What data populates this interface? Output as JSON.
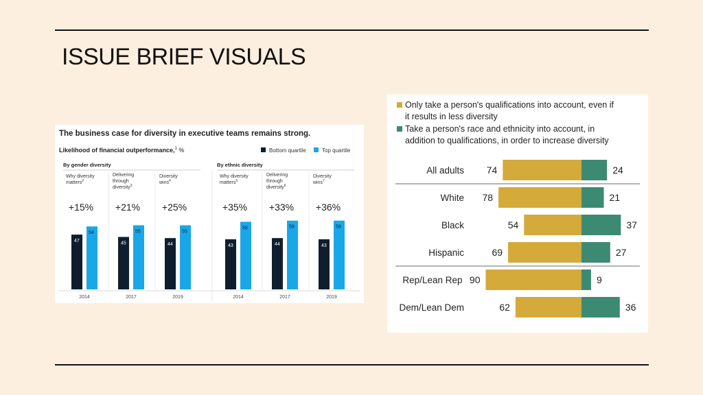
{
  "slide": {
    "title": "ISSUE BRIEF VISUALS"
  },
  "chart_data": [
    {
      "type": "bar",
      "title": "The business case for diversity in executive teams remains strong.",
      "subtitle": "Likelihood of financial outperformance,",
      "subtitle_sup": "1",
      "subtitle_unit": " %",
      "legend": [
        {
          "name": "Bottom quartile",
          "color": "#0f1e2e"
        },
        {
          "name": "Top quartile",
          "color": "#1aa7e8"
        }
      ],
      "legend_position": "top-right",
      "ylim": [
        0,
        100
      ],
      "panels": [
        {
          "heading": "By gender diversity",
          "groups": [
            {
              "label": [
                "Why diversity",
                "matters"
              ],
              "sup": "2",
              "year": "2014",
              "delta": "+15%",
              "bottom": 47,
              "top": 54
            },
            {
              "label": [
                "Delivering",
                "through",
                "diversity"
              ],
              "sup": "3",
              "year": "2017",
              "delta": "+21%",
              "bottom": 45,
              "top": 55
            },
            {
              "label": [
                "Diversity",
                "wins"
              ],
              "sup": "4",
              "year": "2019",
              "delta": "+25%",
              "bottom": 44,
              "top": 55
            }
          ]
        },
        {
          "heading": "By ethnic diversity",
          "groups": [
            {
              "label": [
                "Why diversity",
                "matters"
              ],
              "sup": "5",
              "year": "2014",
              "delta": "+35%",
              "bottom": 43,
              "top": 58
            },
            {
              "label": [
                "Delivering",
                "through",
                "diversity"
              ],
              "sup": "6",
              "year": "2017",
              "delta": "+33%",
              "bottom": 44,
              "top": 59
            },
            {
              "label": [
                "Diversity",
                "wins"
              ],
              "sup": "7",
              "year": "2019",
              "delta": "+36%",
              "bottom": 43,
              "top": 59
            }
          ]
        }
      ]
    },
    {
      "type": "bar",
      "orientation": "horizontal",
      "stacked": "diverging",
      "legend": [
        {
          "name": "Only take a person's qualifications into account, even if it results in less diversity",
          "lines": [
            "Only take a person's qualifications into account, even if",
            "it results in less diversity"
          ],
          "color": "#d4aa3a"
        },
        {
          "name": "Take a person's race and ethnicity into account, in addition to qualifications, in order to increase diversity",
          "lines": [
            "Take a person's race and ethnicity into account, in",
            "addition to qualifications, in order to increase diversity"
          ],
          "color": "#3d8a72"
        }
      ],
      "legend_position": "top",
      "categories": [
        "All adults",
        "White",
        "Black",
        "Hispanic",
        "Rep/Lean Rep",
        "Dem/Lean Dem"
      ],
      "series": [
        {
          "name": "Only take a person's qualifications into account, even if it results in less diversity",
          "values": [
            74,
            78,
            54,
            69,
            90,
            62
          ]
        },
        {
          "name": "Take a person's race and ethnicity into account, in addition to qualifications, in order to increase diversity",
          "values": [
            24,
            21,
            37,
            27,
            9,
            36
          ]
        }
      ]
    }
  ]
}
